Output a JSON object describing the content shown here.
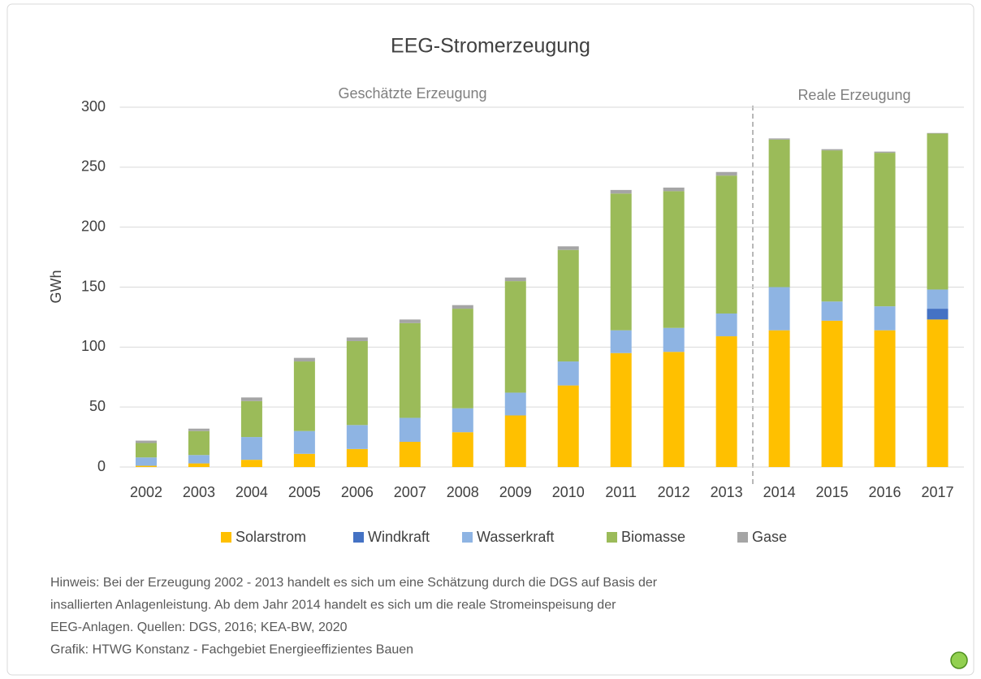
{
  "chart_data": {
    "type": "stacked_bar",
    "title": "EEG-Stromerzeugung",
    "y_label": "GWh",
    "annotations": [
      "Geschätzte Erzeugung",
      "Reale Erzeugung"
    ],
    "categories": [
      "2002",
      "2003",
      "2004",
      "2005",
      "2006",
      "2007",
      "2008",
      "2009",
      "2010",
      "2011",
      "2012",
      "2013",
      "2014",
      "2015",
      "2016",
      "2017"
    ],
    "series": [
      {
        "name": "Solarstrom",
        "color": "#ffc000",
        "values": [
          1,
          3,
          6,
          11,
          15,
          21,
          29,
          43,
          68,
          95,
          96,
          109,
          114,
          122,
          114,
          123
        ]
      },
      {
        "name": "Windkraft",
        "color": "#4472c4",
        "values": [
          0,
          0,
          0,
          0,
          0,
          0,
          0,
          0,
          0,
          0,
          0,
          0,
          0,
          0,
          0,
          9
        ]
      },
      {
        "name": "Wasserkraft",
        "color": "#8eb4e3",
        "values": [
          7,
          7,
          19,
          19,
          20,
          20,
          20,
          19,
          20,
          19,
          20,
          19,
          36,
          16,
          20,
          16
        ]
      },
      {
        "name": "Biomasse",
        "color": "#9bbb59",
        "values": [
          12,
          20,
          30,
          58,
          70,
          79,
          83,
          93,
          93,
          114,
          114,
          115,
          123,
          126,
          128,
          130
        ]
      },
      {
        "name": "Gase",
        "color": "#a5a5a5",
        "values": [
          2,
          2,
          3,
          3,
          3,
          3,
          3,
          3,
          3,
          3,
          3,
          3,
          1,
          1,
          1,
          0.5
        ]
      }
    ],
    "ylim": [
      0,
      300
    ],
    "yticks": [
      0,
      50,
      100,
      150,
      200,
      250,
      300
    ],
    "grid": true,
    "legend": "bottom",
    "notes": [
      "Hinweis: Bei der Erzeugung 2002 - 2013 handelt es sich um eine Schätzung durch die DGS auf Basis der",
      "insallierten Anlagenleistung. Ab dem Jahr 2014 handelt es sich um die reale Stromeinspeisung der",
      "EEG-Anlagen. Quellen: DGS, 2016; KEA-BW, 2020",
      "Grafik: HTWG Konstanz - Fachgebiet Energieeffizientes Bauen"
    ]
  }
}
